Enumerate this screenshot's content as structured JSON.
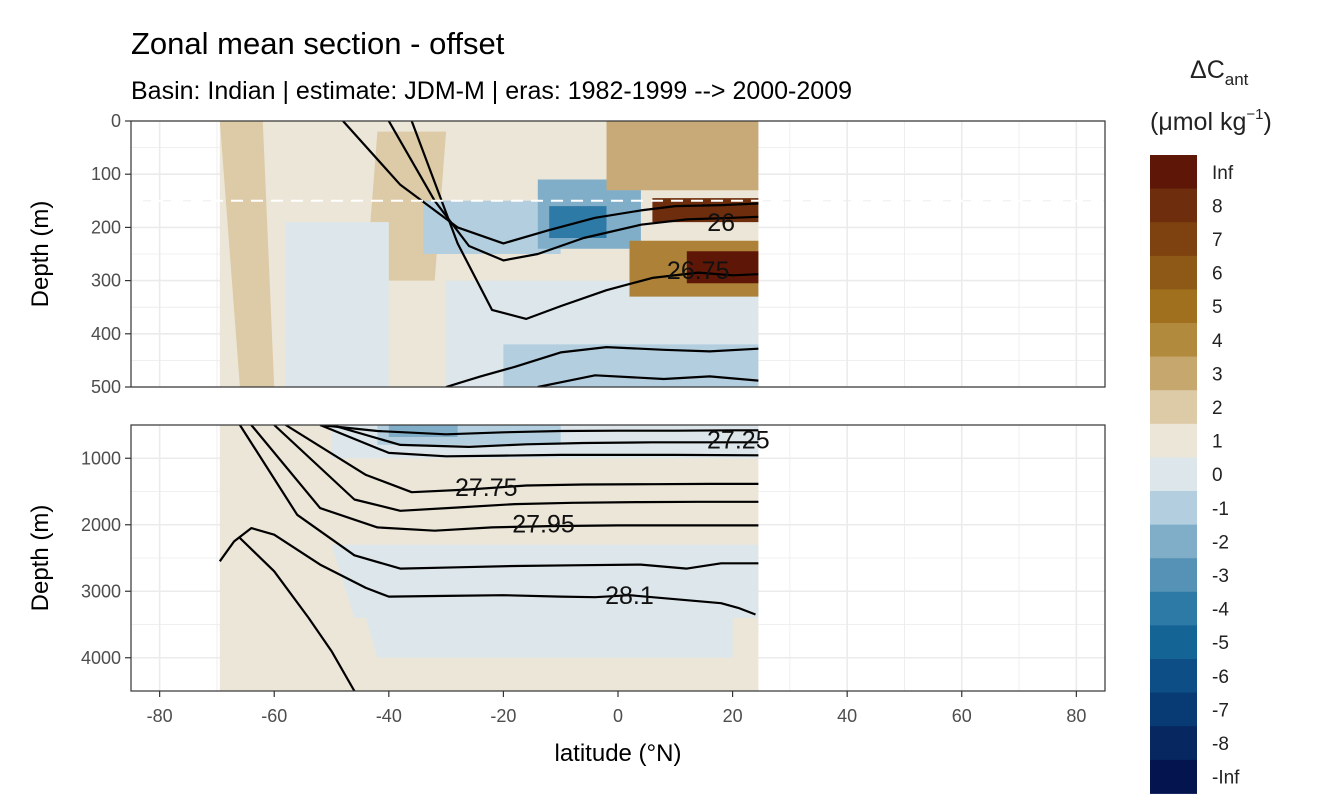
{
  "chart_data": {
    "type": "heatmap",
    "title": "Zonal mean section - offset",
    "subtitle": "Basin: Indian | estimate: JDM-M | eras: 1982-1999 --> 2000-2009",
    "xlabel": "latitude (°N)",
    "xlim": [
      -85,
      85
    ],
    "x_ticks": [
      -80,
      -60,
      -40,
      -20,
      0,
      20,
      40,
      60,
      80
    ],
    "x_tick_labels": [
      "-80",
      "-60",
      "-40",
      "-20",
      "0",
      "20",
      "40",
      "60",
      "80"
    ],
    "panels": [
      {
        "name": "upper",
        "ylabel": "Depth (m)",
        "ylim": [
          0,
          500
        ],
        "y_ticks": [
          0,
          100,
          200,
          300,
          400,
          500
        ],
        "y_tick_labels": [
          "0",
          "100",
          "200",
          "300",
          "400",
          "500"
        ],
        "reference_depth_line": 150
      },
      {
        "name": "lower",
        "ylabel": "Depth (m)",
        "ylim": [
          500,
          4500
        ],
        "y_ticks": [
          1000,
          2000,
          3000,
          4000
        ],
        "y_tick_labels": [
          "1000",
          "2000",
          "3000",
          "4000"
        ]
      }
    ],
    "contour_labels": [
      {
        "panel": "upper",
        "text": "26",
        "lat": 18,
        "depth": 190
      },
      {
        "panel": "upper",
        "text": "26.75",
        "lat": 14,
        "depth": 280
      },
      {
        "panel": "lower",
        "text": "27.25",
        "lat": 21,
        "depth": 720
      },
      {
        "panel": "lower",
        "text": "27.75",
        "lat": -23,
        "depth": 1430
      },
      {
        "panel": "lower",
        "text": "27.95",
        "lat": -13,
        "depth": 1980
      },
      {
        "panel": "lower",
        "text": "28.1",
        "lat": 2,
        "depth": 3060
      }
    ],
    "isopycnals": {
      "upper": [
        {
          "lat": [
            -48,
            -38,
            -28,
            -20,
            -12,
            -4,
            4,
            10,
            18,
            24.5
          ],
          "depth": [
            0,
            120,
            200,
            230,
            205,
            182,
            168,
            160,
            158,
            155
          ]
        },
        {
          "lat": [
            -40,
            -32,
            -26,
            -20,
            -14,
            -6,
            4,
            12,
            20,
            24.5
          ],
          "depth": [
            0,
            150,
            235,
            262,
            250,
            220,
            195,
            185,
            182,
            180
          ]
        },
        {
          "lat": [
            -36,
            -28,
            -22,
            -16,
            -10,
            -2,
            6,
            14,
            20,
            24.5
          ],
          "depth": [
            0,
            230,
            355,
            372,
            348,
            318,
            295,
            285,
            290,
            288
          ]
        },
        {
          "lat": [
            -30,
            -24,
            -18,
            -10,
            -2,
            8,
            16,
            24.5
          ],
          "depth": [
            500,
            480,
            462,
            435,
            425,
            430,
            433,
            428
          ]
        },
        {
          "lat": [
            -14,
            -4,
            8,
            16,
            24.5
          ],
          "depth": [
            500,
            478,
            485,
            480,
            488
          ]
        }
      ],
      "lower": [
        {
          "lat": [
            -52,
            -42,
            -30,
            -20,
            -10,
            0,
            10,
            20,
            24.5
          ],
          "depth": [
            500,
            590,
            640,
            610,
            590,
            585,
            585,
            580,
            580
          ]
        },
        {
          "lat": [
            -50,
            -38,
            -26,
            -16,
            -6,
            6,
            16,
            24.5
          ],
          "depth": [
            500,
            800,
            830,
            790,
            770,
            760,
            760,
            760
          ]
        },
        {
          "lat": [
            -52,
            -40,
            -30,
            -20,
            -10,
            0,
            10,
            24.5
          ],
          "depth": [
            500,
            920,
            970,
            960,
            950,
            950,
            950,
            955
          ]
        },
        {
          "lat": [
            -58,
            -44,
            -36,
            -26,
            -16,
            -6,
            6,
            16,
            24.5
          ],
          "depth": [
            500,
            1250,
            1510,
            1470,
            1410,
            1395,
            1390,
            1385,
            1385
          ]
        },
        {
          "lat": [
            -60,
            -46,
            -38,
            -28,
            -18,
            -8,
            4,
            14,
            24.5
          ],
          "depth": [
            500,
            1620,
            1790,
            1740,
            1690,
            1670,
            1660,
            1655,
            1655
          ]
        },
        {
          "lat": [
            -64,
            -52,
            -42,
            -32,
            -22,
            -12,
            0,
            12,
            24.5
          ],
          "depth": [
            500,
            1750,
            2040,
            2090,
            2040,
            2020,
            2010,
            2010,
            2010
          ]
        },
        {
          "lat": [
            -66,
            -56,
            -46,
            -38,
            -28,
            -18,
            -8,
            4,
            12,
            18,
            24.5
          ],
          "depth": [
            500,
            1850,
            2460,
            2660,
            2640,
            2620,
            2610,
            2600,
            2660,
            2580,
            2580
          ]
        },
        {
          "lat": [
            -69.5,
            -67,
            -64,
            -60,
            -52,
            -44,
            -40,
            -30,
            -20,
            -10,
            -4,
            2,
            10,
            14,
            18,
            21,
            24
          ],
          "depth": [
            2550,
            2250,
            2050,
            2150,
            2600,
            2950,
            3080,
            3070,
            3060,
            3080,
            3090,
            3060,
            3120,
            3150,
            3180,
            3250,
            3350
          ]
        },
        {
          "lat": [
            -66,
            -60,
            -54,
            -50,
            -46
          ],
          "depth": [
            2200,
            2700,
            3400,
            3900,
            4500
          ]
        }
      ]
    },
    "fill_regions": [
      {
        "panel": "upper",
        "level": "1",
        "color": "#ECE6D8",
        "lat": [
          -69.5,
          24.5,
          24.5,
          -69.5
        ],
        "depth": [
          0,
          0,
          500,
          500
        ]
      },
      {
        "panel": "upper",
        "level": "2",
        "color": "#DDCBA7",
        "lat": [
          -69.5,
          -62,
          -60,
          -66
        ],
        "depth": [
          0,
          0,
          500,
          500
        ]
      },
      {
        "panel": "upper",
        "level": "2",
        "color": "#DDCBA7",
        "lat": [
          -42,
          -30,
          -32,
          -44
        ],
        "depth": [
          20,
          20,
          300,
          300
        ]
      },
      {
        "panel": "upper",
        "level": "-1",
        "color": "#DDE7EB",
        "lat": [
          -58,
          -40,
          -40,
          -58
        ],
        "depth": [
          190,
          190,
          500,
          500
        ]
      },
      {
        "panel": "upper",
        "level": "-1",
        "color": "#DDE7EB",
        "lat": [
          -30,
          24.5,
          24.5,
          -30
        ],
        "depth": [
          300,
          300,
          500,
          500
        ]
      },
      {
        "panel": "upper",
        "level": "-2",
        "color": "#B3CFDF",
        "lat": [
          -34,
          -10,
          -10,
          -34
        ],
        "depth": [
          150,
          150,
          250,
          250
        ]
      },
      {
        "panel": "upper",
        "level": "-2",
        "color": "#B3CFDF",
        "lat": [
          -20,
          24.5,
          24.5,
          -20
        ],
        "depth": [
          420,
          420,
          500,
          500
        ]
      },
      {
        "panel": "upper",
        "level": "-3",
        "color": "#80AEC8",
        "lat": [
          -14,
          4,
          4,
          -14
        ],
        "depth": [
          110,
          110,
          240,
          240
        ]
      },
      {
        "panel": "upper",
        "level": "-4",
        "color": "#2E7AA6",
        "lat": [
          -12,
          -2,
          -2,
          -12
        ],
        "depth": [
          160,
          160,
          220,
          220
        ]
      },
      {
        "panel": "upper",
        "level": "3",
        "color": "#C8A978",
        "lat": [
          -2,
          24.5,
          24.5,
          -2
        ],
        "depth": [
          0,
          0,
          130,
          130
        ]
      },
      {
        "panel": "upper",
        "level": "5",
        "color": "#AD8238",
        "lat": [
          2,
          24.5,
          24.5,
          2
        ],
        "depth": [
          225,
          225,
          330,
          330
        ]
      },
      {
        "panel": "upper",
        "level": "8",
        "color": "#6E2D0C",
        "lat": [
          6,
          24.5,
          24.5,
          6
        ],
        "depth": [
          145,
          145,
          190,
          190
        ]
      },
      {
        "panel": "upper",
        "level": "Inf",
        "color": "#5E1706",
        "lat": [
          12,
          24.5,
          24.5,
          12
        ],
        "depth": [
          245,
          245,
          305,
          305
        ]
      },
      {
        "panel": "lower",
        "level": "1",
        "color": "#ECE6D8",
        "lat": [
          -69.5,
          24.5,
          24.5,
          -69.5
        ],
        "depth": [
          500,
          500,
          4500,
          4500
        ]
      },
      {
        "panel": "lower",
        "level": "-1",
        "color": "#DDE7EB",
        "lat": [
          -50,
          24.5,
          24.5,
          -50
        ],
        "depth": [
          500,
          500,
          1000,
          1000
        ]
      },
      {
        "panel": "lower",
        "level": "-1",
        "color": "#DDE7EB",
        "lat": [
          -50,
          24.5,
          24.5,
          -46
        ],
        "depth": [
          2300,
          2300,
          3400,
          3400
        ]
      },
      {
        "panel": "lower",
        "level": "-1",
        "color": "#DDE7EB",
        "lat": [
          -44,
          20,
          20,
          -42
        ],
        "depth": [
          3400,
          3400,
          4000,
          4000
        ]
      },
      {
        "panel": "lower",
        "level": "-2",
        "color": "#B3CFDF",
        "lat": [
          -42,
          -10,
          -10,
          -42
        ],
        "depth": [
          500,
          500,
          800,
          800
        ]
      },
      {
        "panel": "lower",
        "level": "-3",
        "color": "#80AEC8",
        "lat": [
          -40,
          -28,
          -28,
          -40
        ],
        "depth": [
          500,
          500,
          680,
          680
        ]
      }
    ],
    "legend": {
      "title_main": "ΔC",
      "title_sub": "ant",
      "unit_open": "(μmol kg",
      "unit_sup": "−1",
      "unit_close": ")",
      "position": "right",
      "levels": [
        "Inf",
        "8",
        "7",
        "6",
        "5",
        "4",
        "3",
        "2",
        "1",
        "0",
        "-1",
        "-2",
        "-3",
        "-4",
        "-5",
        "-6",
        "-7",
        "-8",
        "-Inf"
      ],
      "colors": [
        "#5E1706",
        "#6E2D0C",
        "#7E4210",
        "#8E5816",
        "#A0701F",
        "#B18A3E",
        "#C6A86E",
        "#DDCBA7",
        "#ECE6D8",
        "#DDE7EB",
        "#B3CFDF",
        "#80AEC8",
        "#5592B6",
        "#2E7AA6",
        "#146495",
        "#0C4E85",
        "#083A73",
        "#06275F",
        "#03144E"
      ]
    }
  }
}
